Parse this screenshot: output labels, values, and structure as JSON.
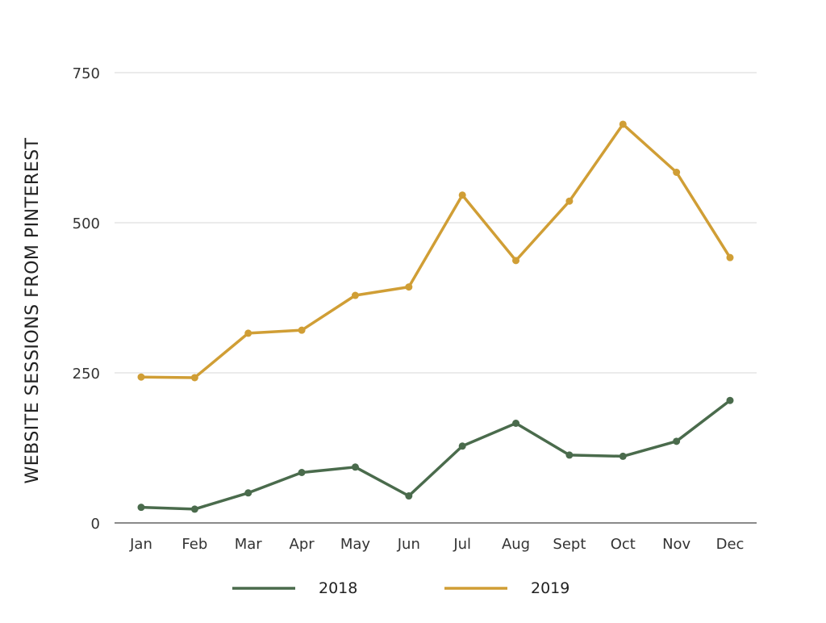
{
  "chart_data": {
    "type": "line",
    "title": "",
    "xlabel": "",
    "ylabel": "WEBSITE SESSIONS FROM PINTEREST",
    "categories": [
      "Jan",
      "Feb",
      "Mar",
      "Apr",
      "May",
      "Jun",
      "Jul",
      "Aug",
      "Sept",
      "Oct",
      "Nov",
      "Dec"
    ],
    "ylim": [
      0,
      750
    ],
    "yticks": [
      0,
      250,
      500,
      750
    ],
    "ytick_labels": [
      "0",
      "250",
      "500",
      "750"
    ],
    "grid": true,
    "legend_position": "bottom",
    "series": [
      {
        "name": "2018",
        "color": "#4a6b4c",
        "values": [
          26,
          23,
          50,
          84,
          93,
          45,
          128,
          166,
          113,
          111,
          136,
          204
        ]
      },
      {
        "name": "2019",
        "color": "#d09e35",
        "values": [
          243,
          242,
          316,
          321,
          379,
          393,
          546,
          437,
          536,
          664,
          584,
          442
        ]
      }
    ]
  }
}
